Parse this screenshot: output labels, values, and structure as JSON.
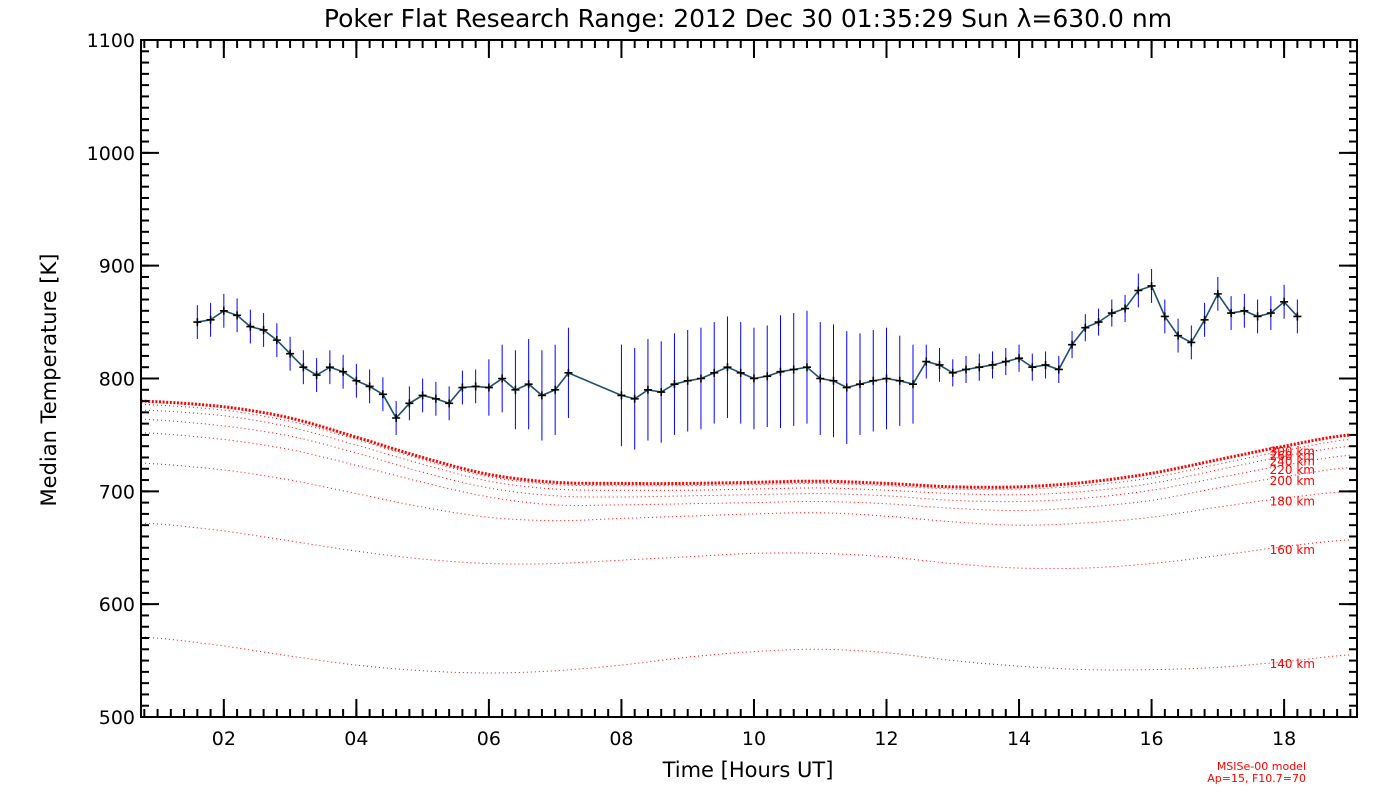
{
  "chart_data": {
    "type": "line",
    "title": "Poker Flat Research Range: 2012 Dec 30 01:35:29 Sun λ=630.0 nm",
    "xlabel": "Time [Hours UT]",
    "ylabel": "Median Temperature [K]",
    "xlim": [
      0.75,
      19.1
    ],
    "ylim": [
      500,
      1100
    ],
    "x_ticks": [
      2,
      4,
      6,
      8,
      10,
      12,
      14,
      16,
      18
    ],
    "x_tick_labels": [
      "02",
      "04",
      "06",
      "08",
      "10",
      "12",
      "14",
      "16",
      "18"
    ],
    "y_ticks": [
      500,
      600,
      700,
      800,
      900,
      1000,
      1100
    ],
    "y_tick_labels": [
      "500",
      "600",
      "700",
      "800",
      "900",
      "1000",
      "1100"
    ],
    "grid": false,
    "measured": {
      "x": [
        1.6,
        1.8,
        2.0,
        2.2,
        2.4,
        2.6,
        2.8,
        3.0,
        3.2,
        3.4,
        3.6,
        3.8,
        4.0,
        4.2,
        4.4,
        4.6,
        4.8,
        5.0,
        5.2,
        5.4,
        5.6,
        5.8,
        6.0,
        6.2,
        6.4,
        6.6,
        6.8,
        7.0,
        7.2,
        8.0,
        8.2,
        8.4,
        8.6,
        8.8,
        9.0,
        9.2,
        9.4,
        9.6,
        9.8,
        10.0,
        10.2,
        10.4,
        10.6,
        10.8,
        11.0,
        11.2,
        11.4,
        11.6,
        11.8,
        12.0,
        12.2,
        12.4,
        12.6,
        12.8,
        13.0,
        13.2,
        13.4,
        13.6,
        13.8,
        14.0,
        14.2,
        14.4,
        14.6,
        14.8,
        15.0,
        15.2,
        15.4,
        15.6,
        15.8,
        16.0,
        16.2,
        16.4,
        16.6,
        16.8,
        17.0,
        17.2,
        17.4,
        17.6,
        17.8,
        18.0,
        18.2
      ],
      "y": [
        850,
        852,
        860,
        856,
        846,
        843,
        834,
        822,
        810,
        803,
        810,
        806,
        798,
        793,
        786,
        765,
        778,
        785,
        782,
        778,
        792,
        793,
        792,
        800,
        790,
        795,
        785,
        790,
        805,
        785,
        782,
        790,
        788,
        795,
        798,
        800,
        805,
        810,
        805,
        800,
        802,
        806,
        808,
        810,
        800,
        798,
        792,
        795,
        798,
        800,
        798,
        795,
        815,
        812,
        805,
        808,
        810,
        812,
        815,
        818,
        810,
        812,
        808,
        830,
        845,
        850,
        858,
        862,
        878,
        882,
        855,
        838,
        832,
        852,
        875,
        858,
        860,
        855,
        858,
        868,
        855
      ],
      "err": [
        15,
        15,
        15,
        15,
        15,
        15,
        15,
        15,
        15,
        15,
        15,
        15,
        15,
        15,
        15,
        15,
        15,
        15,
        15,
        15,
        15,
        15,
        25,
        30,
        35,
        40,
        40,
        40,
        40,
        45,
        45,
        45,
        45,
        45,
        45,
        45,
        45,
        45,
        45,
        45,
        45,
        50,
        50,
        50,
        50,
        50,
        50,
        45,
        45,
        45,
        40,
        35,
        15,
        15,
        12,
        12,
        12,
        12,
        12,
        12,
        12,
        12,
        12,
        12,
        12,
        12,
        12,
        12,
        15,
        15,
        15,
        15,
        15,
        15,
        15,
        15,
        15,
        15,
        15,
        15,
        15
      ]
    },
    "msis_model": {
      "x": [
        0.75,
        2,
        3,
        4,
        5,
        6,
        7,
        8,
        9,
        10,
        11,
        12,
        13,
        14,
        15,
        16,
        17,
        18,
        19
      ],
      "curves": [
        {
          "label": "300 km",
          "thick": true,
          "y": [
            780,
            775,
            765,
            748,
            730,
            715,
            708,
            707,
            707,
            708,
            709,
            707,
            704,
            704,
            708,
            716,
            728,
            740,
            750
          ]
        },
        {
          "label": "260 km",
          "thick": false,
          "y": [
            777,
            772,
            762,
            746,
            728,
            713,
            706,
            705,
            705,
            706,
            707,
            705,
            702,
            702,
            705,
            712,
            724,
            736,
            746
          ]
        },
        {
          "label": "240 km",
          "thick": false,
          "y": [
            772,
            767,
            757,
            741,
            724,
            709,
            702,
            701,
            701,
            702,
            703,
            701,
            698,
            697,
            700,
            707,
            719,
            731,
            740
          ]
        },
        {
          "label": "220 km",
          "thick": false,
          "y": [
            764,
            758,
            749,
            734,
            717,
            703,
            696,
            695,
            696,
            697,
            698,
            696,
            692,
            691,
            694,
            701,
            712,
            723,
            732
          ]
        },
        {
          "label": "200 km",
          "thick": false,
          "y": [
            752,
            746,
            737,
            723,
            708,
            695,
            688,
            688,
            689,
            690,
            691,
            689,
            685,
            683,
            686,
            692,
            703,
            713,
            721
          ]
        },
        {
          "label": "180 km",
          "thick": false,
          "y": [
            725,
            719,
            710,
            698,
            686,
            677,
            674,
            676,
            678,
            680,
            681,
            678,
            673,
            670,
            672,
            677,
            686,
            694,
            700
          ]
        },
        {
          "label": "160 km",
          "thick": false,
          "y": [
            672,
            665,
            656,
            647,
            640,
            636,
            636,
            639,
            642,
            645,
            645,
            642,
            636,
            632,
            632,
            636,
            643,
            651,
            657
          ]
        },
        {
          "label": "140 km",
          "thick": false,
          "y": [
            571,
            563,
            554,
            546,
            541,
            539,
            541,
            546,
            553,
            558,
            560,
            557,
            550,
            545,
            542,
            542,
            544,
            549,
            555
          ]
        }
      ],
      "label_x": 17.6
    },
    "note_lines": [
      "MSISe-00 model",
      "Ap=15, F10.7=70"
    ],
    "colors": {
      "measured_line": "#1f4f6e",
      "error_bars": "#0000ff",
      "markers": "#000000",
      "model": "#ff0000"
    }
  }
}
